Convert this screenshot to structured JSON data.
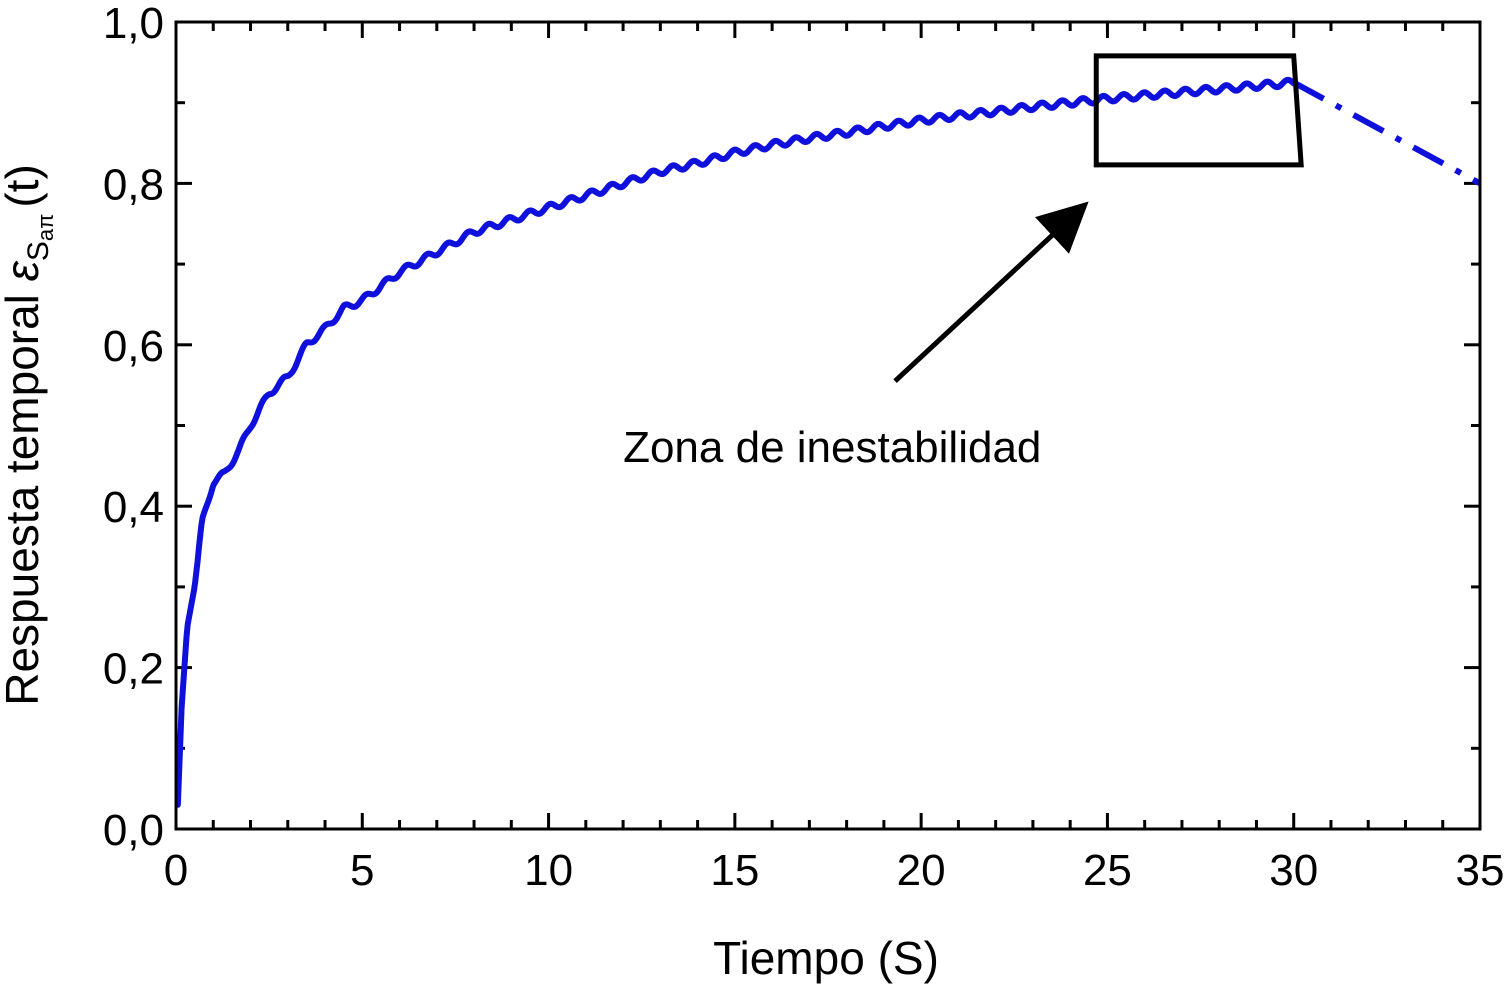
{
  "chart_data": {
    "type": "line",
    "title": "",
    "xlabel": "Tiempo  (S)",
    "ylabel_main": "Respuesta temporal ",
    "ylabel_symbol": "ε",
    "ylabel_sub": "S",
    "ylabel_subsub": "aπ",
    "ylabel_tail": "(t)",
    "xlim": [
      0,
      35
    ],
    "ylim": [
      0,
      1.0
    ],
    "xticks": [
      0,
      5,
      10,
      15,
      20,
      25,
      30,
      35
    ],
    "xtick_labels": [
      "0",
      "5",
      "10",
      "15",
      "20",
      "25",
      "30",
      "35"
    ],
    "yticks": [
      0,
      0.2,
      0.4,
      0.6,
      0.8,
      1.0
    ],
    "ytick_labels": [
      "0,0",
      "0,2",
      "0,4",
      "0,6",
      "0,8",
      "1,0"
    ],
    "grid": false,
    "series": [
      {
        "color": "#1010dd",
        "style": "solid",
        "x": [
          0.05,
          0.15,
          0.3,
          0.5,
          0.7,
          1.0,
          1.3,
          1.7,
          2.0,
          2.5,
          3.0,
          3.5,
          4.0,
          4.5,
          5.0,
          6.0,
          7.0,
          8.0,
          9.0,
          10.0,
          11.0,
          12.0,
          13.0,
          14.0,
          15.0,
          16.0,
          17.0,
          18.0,
          19.0,
          20.0,
          21.0,
          22.0,
          23.0,
          24.0,
          25.0,
          26.0,
          27.0,
          28.0,
          29.0,
          30.0
        ],
        "y": [
          0.03,
          0.15,
          0.25,
          0.3,
          0.38,
          0.43,
          0.44,
          0.47,
          0.5,
          0.54,
          0.56,
          0.6,
          0.62,
          0.645,
          0.655,
          0.69,
          0.715,
          0.74,
          0.755,
          0.77,
          0.785,
          0.8,
          0.815,
          0.825,
          0.838,
          0.848,
          0.856,
          0.863,
          0.871,
          0.878,
          0.884,
          0.889,
          0.895,
          0.9,
          0.905,
          0.909,
          0.913,
          0.917,
          0.921,
          0.925
        ]
      },
      {
        "color": "#1010dd",
        "style": "dash-dot",
        "x": [
          30.0,
          35.0
        ],
        "y": [
          0.925,
          0.8
        ]
      }
    ],
    "annotations": [
      {
        "type": "box",
        "corners": [
          [
            24.7,
            0.958
          ],
          [
            30.0,
            0.958
          ],
          [
            30.2,
            0.823
          ],
          [
            24.7,
            0.823
          ]
        ]
      },
      {
        "type": "arrow",
        "from": [
          19.3,
          0.555
        ],
        "to": [
          24.2,
          0.765
        ]
      },
      {
        "type": "text",
        "text": "Zona de inestabilidad",
        "at": [
          12.0,
          0.455
        ]
      }
    ]
  }
}
